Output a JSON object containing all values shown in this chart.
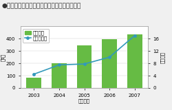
{
  "title": "●トナーコンテナの回収重量および再利用本数",
  "title_color": "#333333",
  "years": [
    2003,
    2004,
    2005,
    2006,
    2007
  ],
  "bar_values": [
    85,
    200,
    345,
    395,
    435
  ],
  "bar_color": "#66BB44",
  "line_values": [
    4.5,
    7.5,
    7.8,
    10.0,
    17.0
  ],
  "line_color": "#3399BB",
  "ylabel_left": "（t）",
  "ylabel_right": "（万本）",
  "xlabel": "（年度）",
  "ylim_left": [
    0,
    500
  ],
  "ylim_right": [
    0,
    20
  ],
  "yticks_left": [
    0,
    100,
    200,
    300,
    400
  ],
  "yticks_right": [
    0,
    4,
    8,
    12,
    16
  ],
  "legend_bar_label": "回収重量",
  "legend_line_label": "再利用本数",
  "bg_color": "#f0f0f0",
  "plot_bg_color": "#ffffff",
  "title_fontsize": 6.5,
  "tick_fontsize": 5.0,
  "label_fontsize": 5.0,
  "legend_fontsize": 5.0
}
